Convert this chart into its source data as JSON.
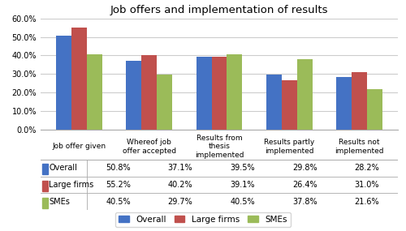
{
  "title": "Job offers and implementation of results",
  "categories": [
    "Job offer given",
    "Whereof job\noffer accepted",
    "Results from\nthesis\nimplemented",
    "Results partly\nimplemented",
    "Results not\nimplemented"
  ],
  "series": {
    "Overall": [
      50.8,
      37.1,
      39.5,
      29.8,
      28.2
    ],
    "Large firms": [
      55.2,
      40.2,
      39.1,
      26.4,
      31.0
    ],
    "SMEs": [
      40.5,
      29.7,
      40.5,
      37.8,
      21.6
    ]
  },
  "colors": {
    "Overall": "#4472C4",
    "Large firms": "#C0504D",
    "SMEs": "#9BBB59"
  },
  "ylim": [
    0,
    60
  ],
  "yticks": [
    0,
    10,
    20,
    30,
    40,
    50,
    60
  ],
  "ytick_labels": [
    "0.0%",
    "10.0%",
    "20.0%",
    "30.0%",
    "40.0%",
    "50.0%",
    "60.0%"
  ],
  "table_rows": {
    "Overall": [
      "50.8%",
      "37.1%",
      "39.5%",
      "29.8%",
      "28.2%"
    ],
    "Large firms": [
      "55.2%",
      "40.2%",
      "39.1%",
      "26.4%",
      "31.0%"
    ],
    "SMEs": [
      "40.5%",
      "29.7%",
      "40.5%",
      "37.8%",
      "21.6%"
    ]
  },
  "legend_labels": [
    "Overall",
    "Large firms",
    "SMEs"
  ],
  "bar_width": 0.22
}
